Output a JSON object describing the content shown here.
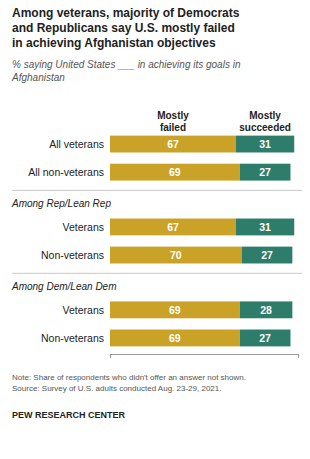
{
  "chart_data": {
    "type": "bar",
    "orientation": "horizontal",
    "stacked": true,
    "data_labels": true,
    "tick_labels": "y",
    "grid": false,
    "title": "Among veterans, majority of Democrats\nand Republicans say U.S. mostly failed\nin achieving Afghanistan objectives",
    "subtitle": "% saying United States ___ in achieving its goals in\nAfghanistan",
    "note": "Note: Share of respondents who didn't offer an answer not shown.\nSource: Survey of U.S. adults conducted Aug. 23-29, 2021.",
    "source": "PEW RESEARCH CENTER",
    "categories": [
      "All veterans",
      "All non-veterans",
      "Veterans",
      "Non-veterans",
      "Veterans",
      "Non-veterans"
    ],
    "series": [
      {
        "name": "Mostly\nfailed",
        "color": "#C9A227",
        "values": [
          67,
          69,
          67,
          70,
          69,
          69
        ]
      },
      {
        "name": "Mostly\nsucceeded",
        "color": "#2E7D6B",
        "values": [
          31,
          27,
          31,
          27,
          28,
          27
        ]
      }
    ],
    "annotations": [
      {
        "text": "Among Rep/Lean Rep",
        "before_index": 2
      },
      {
        "text": "Among Dem/Lean Dem",
        "before_index": 4
      }
    ],
    "xlim": [
      0,
      100
    ],
    "xticks": [
      0,
      100
    ]
  }
}
